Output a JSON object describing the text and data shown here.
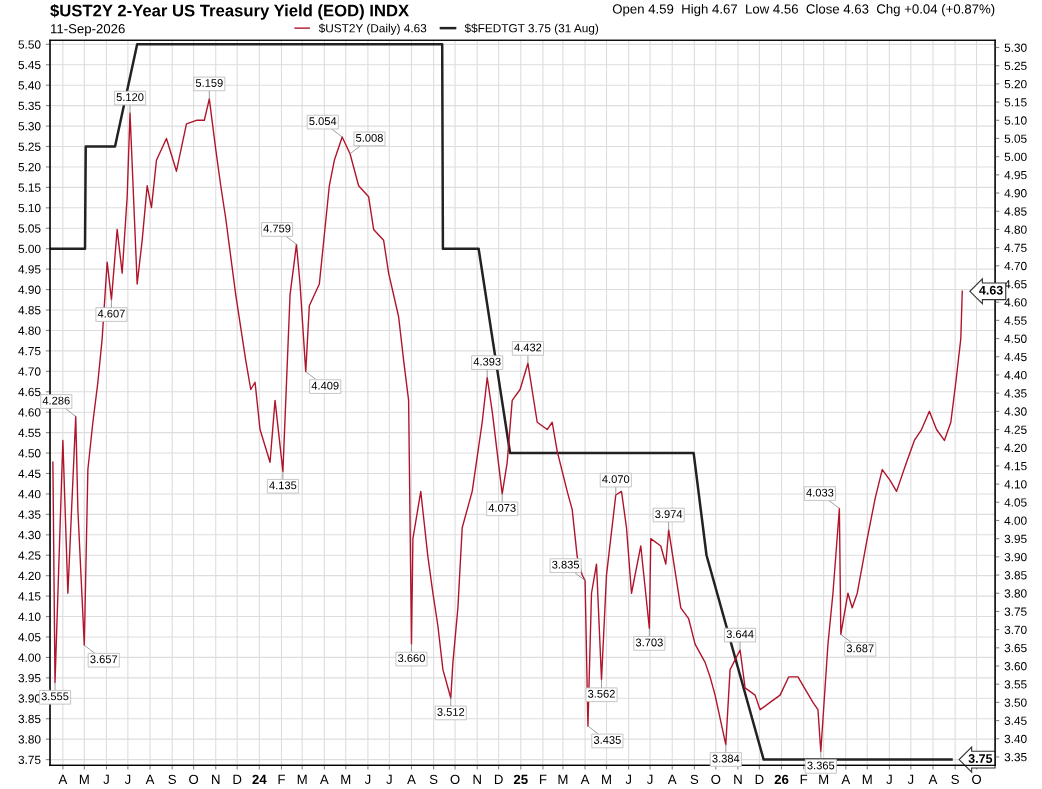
{
  "chart_data": {
    "type": "line",
    "title": "$UST2Y 2-Year US Treasury Yield (EOD) INDX",
    "subtitle": "11-Sep-2026",
    "xlim": [
      "2023-03-14",
      "2026-10-27"
    ],
    "xticks": [
      {
        "value": "2023-04",
        "label": "A"
      },
      {
        "value": "2023-05",
        "label": "M"
      },
      {
        "value": "2023-06",
        "label": "J"
      },
      {
        "value": "2023-07",
        "label": "J"
      },
      {
        "value": "2023-08",
        "label": "A"
      },
      {
        "value": "2023-09",
        "label": "S"
      },
      {
        "value": "2023-10",
        "label": "O"
      },
      {
        "value": "2023-11",
        "label": "N"
      },
      {
        "value": "2023-12",
        "label": "D"
      },
      {
        "value": "2024-01",
        "label": "24"
      },
      {
        "value": "2024-02",
        "label": "F"
      },
      {
        "value": "2024-03",
        "label": "M"
      },
      {
        "value": "2024-04",
        "label": "A"
      },
      {
        "value": "2024-05",
        "label": "M"
      },
      {
        "value": "2024-06",
        "label": "J"
      },
      {
        "value": "2024-07",
        "label": "J"
      },
      {
        "value": "2024-08",
        "label": "A"
      },
      {
        "value": "2024-09",
        "label": "S"
      },
      {
        "value": "2024-10",
        "label": "O"
      },
      {
        "value": "2024-11",
        "label": "N"
      },
      {
        "value": "2024-12",
        "label": "D"
      },
      {
        "value": "2025-01",
        "label": "25"
      },
      {
        "value": "2025-02",
        "label": "F"
      },
      {
        "value": "2025-03",
        "label": "M"
      },
      {
        "value": "2025-04",
        "label": "A"
      },
      {
        "value": "2025-05",
        "label": "M"
      },
      {
        "value": "2025-06",
        "label": "J"
      },
      {
        "value": "2025-07",
        "label": "J"
      },
      {
        "value": "2025-08",
        "label": "A"
      },
      {
        "value": "2025-09",
        "label": "S"
      },
      {
        "value": "2025-10",
        "label": "O"
      },
      {
        "value": "2025-11",
        "label": "N"
      },
      {
        "value": "2025-12",
        "label": "D"
      },
      {
        "value": "2026-01",
        "label": "26"
      },
      {
        "value": "2026-02",
        "label": "F"
      },
      {
        "value": "2026-03",
        "label": "M"
      },
      {
        "value": "2026-04",
        "label": "A"
      },
      {
        "value": "2026-05",
        "label": "M"
      },
      {
        "value": "2026-06",
        "label": "J"
      },
      {
        "value": "2026-07",
        "label": "J"
      },
      {
        "value": "2026-08",
        "label": "A"
      },
      {
        "value": "2026-09",
        "label": "S"
      },
      {
        "value": "2026-10",
        "label": "O"
      }
    ],
    "ylim": [
      3.736,
      5.51
    ],
    "yticks": [
      {
        "value": 3.75,
        "label": "3.75"
      },
      {
        "value": 3.8,
        "label": "3.80"
      },
      {
        "value": 3.85,
        "label": "3.85"
      },
      {
        "value": 3.9,
        "label": "3.90"
      },
      {
        "value": 3.95,
        "label": "3.95"
      },
      {
        "value": 4.0,
        "label": "4.00"
      },
      {
        "value": 4.05,
        "label": "4.05"
      },
      {
        "value": 4.1,
        "label": "4.10"
      },
      {
        "value": 4.15,
        "label": "4.15"
      },
      {
        "value": 4.2,
        "label": "4.20"
      },
      {
        "value": 4.25,
        "label": "4.25"
      },
      {
        "value": 4.3,
        "label": "4.30"
      },
      {
        "value": 4.35,
        "label": "4.35"
      },
      {
        "value": 4.4,
        "label": "4.40"
      },
      {
        "value": 4.45,
        "label": "4.45"
      },
      {
        "value": 4.5,
        "label": "4.50"
      },
      {
        "value": 4.55,
        "label": "4.55"
      },
      {
        "value": 4.6,
        "label": "4.60"
      },
      {
        "value": 4.65,
        "label": "4.65"
      },
      {
        "value": 4.7,
        "label": "4.70"
      },
      {
        "value": 4.75,
        "label": "4.75"
      },
      {
        "value": 4.8,
        "label": "4.80"
      },
      {
        "value": 4.85,
        "label": "4.85"
      },
      {
        "value": 4.9,
        "label": "4.90"
      },
      {
        "value": 4.95,
        "label": "4.95"
      },
      {
        "value": 5.0,
        "label": "5.00"
      },
      {
        "value": 5.05,
        "label": "5.05"
      },
      {
        "value": 5.1,
        "label": "5.10"
      },
      {
        "value": 5.15,
        "label": "5.15"
      },
      {
        "value": 5.2,
        "label": "5.20"
      },
      {
        "value": 5.25,
        "label": "5.25"
      },
      {
        "value": 5.3,
        "label": "5.30"
      },
      {
        "value": 5.35,
        "label": "5.35"
      },
      {
        "value": 5.4,
        "label": "5.40"
      },
      {
        "value": 5.45,
        "label": "5.45"
      },
      {
        "value": 5.5,
        "label": "5.50"
      }
    ],
    "y2lim": [
      3.327,
      5.32
    ],
    "y2ticks": [
      {
        "value": 3.35,
        "label": "3.35"
      },
      {
        "value": 3.4,
        "label": "3.40"
      },
      {
        "value": 3.45,
        "label": "3.45"
      },
      {
        "value": 3.5,
        "label": "3.50"
      },
      {
        "value": 3.55,
        "label": "3.55"
      },
      {
        "value": 3.6,
        "label": "3.60"
      },
      {
        "value": 3.65,
        "label": "3.65"
      },
      {
        "value": 3.7,
        "label": "3.70"
      },
      {
        "value": 3.75,
        "label": "3.75"
      },
      {
        "value": 3.8,
        "label": "3.80"
      },
      {
        "value": 3.85,
        "label": "3.85"
      },
      {
        "value": 3.9,
        "label": "3.90"
      },
      {
        "value": 3.95,
        "label": "3.95"
      },
      {
        "value": 4.0,
        "label": "4.00"
      },
      {
        "value": 4.05,
        "label": "4.05"
      },
      {
        "value": 4.1,
        "label": "4.10"
      },
      {
        "value": 4.15,
        "label": "4.15"
      },
      {
        "value": 4.2,
        "label": "4.20"
      },
      {
        "value": 4.25,
        "label": "4.25"
      },
      {
        "value": 4.3,
        "label": "4.30"
      },
      {
        "value": 4.35,
        "label": "4.35"
      },
      {
        "value": 4.4,
        "label": "4.40"
      },
      {
        "value": 4.45,
        "label": "4.45"
      },
      {
        "value": 4.5,
        "label": "4.50"
      },
      {
        "value": 4.55,
        "label": "4.55"
      },
      {
        "value": 4.6,
        "label": "4.60"
      },
      {
        "value": 4.65,
        "label": "4.65"
      },
      {
        "value": 4.7,
        "label": "4.70"
      },
      {
        "value": 4.75,
        "label": "4.75"
      },
      {
        "value": 4.8,
        "label": "4.80"
      },
      {
        "value": 4.85,
        "label": "4.85"
      },
      {
        "value": 4.9,
        "label": "4.90"
      },
      {
        "value": 4.95,
        "label": "4.95"
      },
      {
        "value": 5.0,
        "label": "5.00"
      },
      {
        "value": 5.05,
        "label": "5.05"
      },
      {
        "value": 5.1,
        "label": "5.10"
      },
      {
        "value": 5.15,
        "label": "5.15"
      },
      {
        "value": 5.2,
        "label": "5.20"
      },
      {
        "value": 5.25,
        "label": "5.25"
      },
      {
        "value": 5.3,
        "label": "5.30"
      }
    ],
    "grid": true,
    "legend": "top",
    "series": [
      {
        "name": "$UST2Y (Daily) 4.63",
        "color": "#b0142a",
        "axis": "y2",
        "x": [
          "2023-03-18",
          "2023-03-21",
          "2023-04-01",
          "2023-04-08",
          "2023-04-19",
          "2023-04-22",
          "2023-05-01",
          "2023-05-06",
          "2023-05-13",
          "2023-05-20",
          "2023-05-26",
          "2023-06-02",
          "2023-06-08",
          "2023-06-16",
          "2023-06-23",
          "2023-06-30",
          "2023-07-04",
          "2023-07-14",
          "2023-07-21",
          "2023-07-28",
          "2023-08-03",
          "2023-08-10",
          "2023-08-24",
          "2023-09-07",
          "2023-09-21",
          "2023-10-05",
          "2023-10-16",
          "2023-10-23",
          "2023-11-01",
          "2023-11-08",
          "2023-11-15",
          "2023-11-29",
          "2023-12-13",
          "2023-12-20",
          "2023-12-26",
          "2024-01-02",
          "2024-01-16",
          "2024-01-23",
          "2024-02-03",
          "2024-02-13",
          "2024-02-22",
          "2024-02-27",
          "2024-03-06",
          "2024-03-11",
          "2024-03-25",
          "2024-04-08",
          "2024-04-15",
          "2024-04-26",
          "2024-05-07",
          "2024-05-19",
          "2024-06-02",
          "2024-06-09",
          "2024-06-23",
          "2024-06-30",
          "2024-07-14",
          "2024-07-21",
          "2024-07-28",
          "2024-08-01",
          "2024-08-03",
          "2024-08-14",
          "2024-08-24",
          "2024-08-31",
          "2024-09-07",
          "2024-09-14",
          "2024-09-25",
          "2024-09-28",
          "2024-10-05",
          "2024-10-11",
          "2024-10-25",
          "2024-11-08",
          "2024-11-15",
          "2024-11-22",
          "2024-12-06",
          "2024-12-13",
          "2024-12-20",
          "2024-12-31",
          "2025-01-11",
          "2025-01-24",
          "2025-02-07",
          "2025-02-14",
          "2025-02-21",
          "2025-03-07",
          "2025-03-14",
          "2025-03-21",
          "2025-03-28",
          "2025-04-01",
          "2025-04-05",
          "2025-04-10",
          "2025-04-17",
          "2025-04-24",
          "2025-05-01",
          "2025-05-14",
          "2025-05-22",
          "2025-05-29",
          "2025-06-05",
          "2025-06-18",
          "2025-06-30",
          "2025-07-02",
          "2025-07-16",
          "2025-07-23",
          "2025-07-27",
          "2025-08-13",
          "2025-08-24",
          "2025-09-02",
          "2025-09-16",
          "2025-09-23",
          "2025-09-30",
          "2025-10-15",
          "2025-10-21",
          "2025-11-04",
          "2025-11-11",
          "2025-11-25",
          "2025-12-02",
          "2025-12-16",
          "2025-12-30",
          "2026-01-11",
          "2026-01-24",
          "2026-02-14",
          "2026-02-21",
          "2026-02-25",
          "2026-03-07",
          "2026-03-14",
          "2026-03-23",
          "2026-03-25",
          "2026-04-04",
          "2026-04-10",
          "2026-04-17",
          "2026-05-01",
          "2026-05-12",
          "2026-05-22",
          "2026-06-02",
          "2026-06-11",
          "2026-06-25",
          "2026-07-06",
          "2026-07-16",
          "2026-07-27",
          "2026-08-06",
          "2026-08-17",
          "2026-08-26",
          "2026-09-02",
          "2026-09-09",
          "2026-09-11"
        ],
        "values": [
          4.16,
          3.555,
          4.22,
          3.8,
          4.286,
          4.03,
          3.657,
          4.14,
          4.27,
          4.38,
          4.5,
          4.71,
          4.607,
          4.8,
          4.68,
          4.89,
          5.12,
          4.65,
          4.77,
          4.92,
          4.86,
          4.99,
          5.05,
          4.96,
          5.09,
          5.1,
          5.1,
          5.159,
          5.02,
          4.92,
          4.83,
          4.62,
          4.44,
          4.36,
          4.38,
          4.25,
          4.16,
          4.33,
          4.135,
          4.62,
          4.759,
          4.65,
          4.409,
          4.59,
          4.65,
          4.92,
          4.99,
          5.054,
          5.008,
          4.92,
          4.89,
          4.8,
          4.77,
          4.68,
          4.56,
          4.44,
          4.33,
          3.66,
          3.95,
          4.08,
          3.9,
          3.8,
          3.71,
          3.59,
          3.512,
          3.61,
          3.76,
          3.98,
          4.08,
          4.27,
          4.393,
          4.3,
          4.073,
          4.16,
          4.33,
          4.36,
          4.432,
          4.27,
          4.25,
          4.27,
          4.19,
          4.08,
          4.03,
          3.9,
          3.85,
          3.835,
          3.435,
          3.8,
          3.88,
          3.562,
          3.85,
          4.07,
          4.08,
          3.98,
          3.8,
          3.93,
          3.703,
          3.95,
          3.93,
          3.88,
          3.974,
          3.76,
          3.73,
          3.66,
          3.61,
          3.57,
          3.52,
          3.384,
          3.59,
          3.644,
          3.54,
          3.52,
          3.48,
          3.5,
          3.52,
          3.57,
          3.57,
          3.5,
          3.48,
          3.365,
          3.66,
          3.8,
          4.033,
          3.687,
          3.8,
          3.76,
          3.8,
          3.95,
          4.06,
          4.14,
          4.11,
          4.08,
          4.16,
          4.22,
          4.25,
          4.3,
          4.25,
          4.22,
          4.27,
          4.38,
          4.5,
          4.63
        ],
        "value_labels": [
          null,
          "3.555",
          null,
          null,
          "4.286",
          null,
          "3.657",
          null,
          null,
          null,
          null,
          null,
          "4.607",
          null,
          null,
          null,
          "5.120",
          null,
          null,
          null,
          null,
          null,
          null,
          null,
          null,
          null,
          null,
          "5.159",
          null,
          null,
          null,
          null,
          null,
          null,
          null,
          null,
          null,
          null,
          "4.135",
          null,
          "4.759",
          null,
          "4.409",
          null,
          null,
          null,
          null,
          "5.054",
          "5.008",
          null,
          null,
          null,
          null,
          null,
          null,
          null,
          null,
          "3.660",
          null,
          null,
          null,
          null,
          null,
          null,
          "3.512",
          null,
          null,
          null,
          null,
          null,
          "4.393",
          null,
          "4.073",
          null,
          null,
          null,
          "4.432",
          null,
          null,
          null,
          null,
          null,
          null,
          null,
          null,
          "3.835",
          "3.435",
          null,
          null,
          "3.562",
          null,
          "4.070",
          null,
          null,
          null,
          null,
          "3.703",
          null,
          null,
          null,
          "3.974",
          null,
          null,
          null,
          null,
          null,
          null,
          "3.384",
          null,
          "3.644",
          null,
          null,
          null,
          null,
          null,
          null,
          null,
          null,
          null,
          "3.365",
          null,
          null,
          "4.033",
          "3.687",
          null,
          null,
          null,
          null,
          null,
          null,
          null,
          null,
          null,
          null,
          null,
          null,
          null,
          null,
          null,
          null,
          null,
          "4.63"
        ]
      },
      {
        "name": "$$FEDTGT 3.75 (31 Aug)",
        "color": "#222222",
        "x": [
          "2023-03-14",
          "2023-05-02",
          "2023-05-03",
          "2023-06-13",
          "2023-07-14",
          "2024-09-13",
          "2024-09-14",
          "2024-11-03",
          "2024-12-17",
          "2025-08-31",
          "2025-09-18",
          "2025-12-07",
          "2026-08-27"
        ],
        "values": [
          5.0,
          5.0,
          5.25,
          5.25,
          5.5,
          5.5,
          5.0,
          5.0,
          4.5,
          4.5,
          4.25,
          3.75,
          3.75
        ],
        "value_labels": [
          null,
          null,
          null,
          null,
          null,
          null,
          null,
          null,
          null,
          null,
          null,
          null,
          "3.75"
        ]
      }
    ],
    "annotations": [
      "Open 4.59  High 4.67  Low 4.56  Close 4.63  Chg +0.04 (+0.87%)"
    ]
  }
}
